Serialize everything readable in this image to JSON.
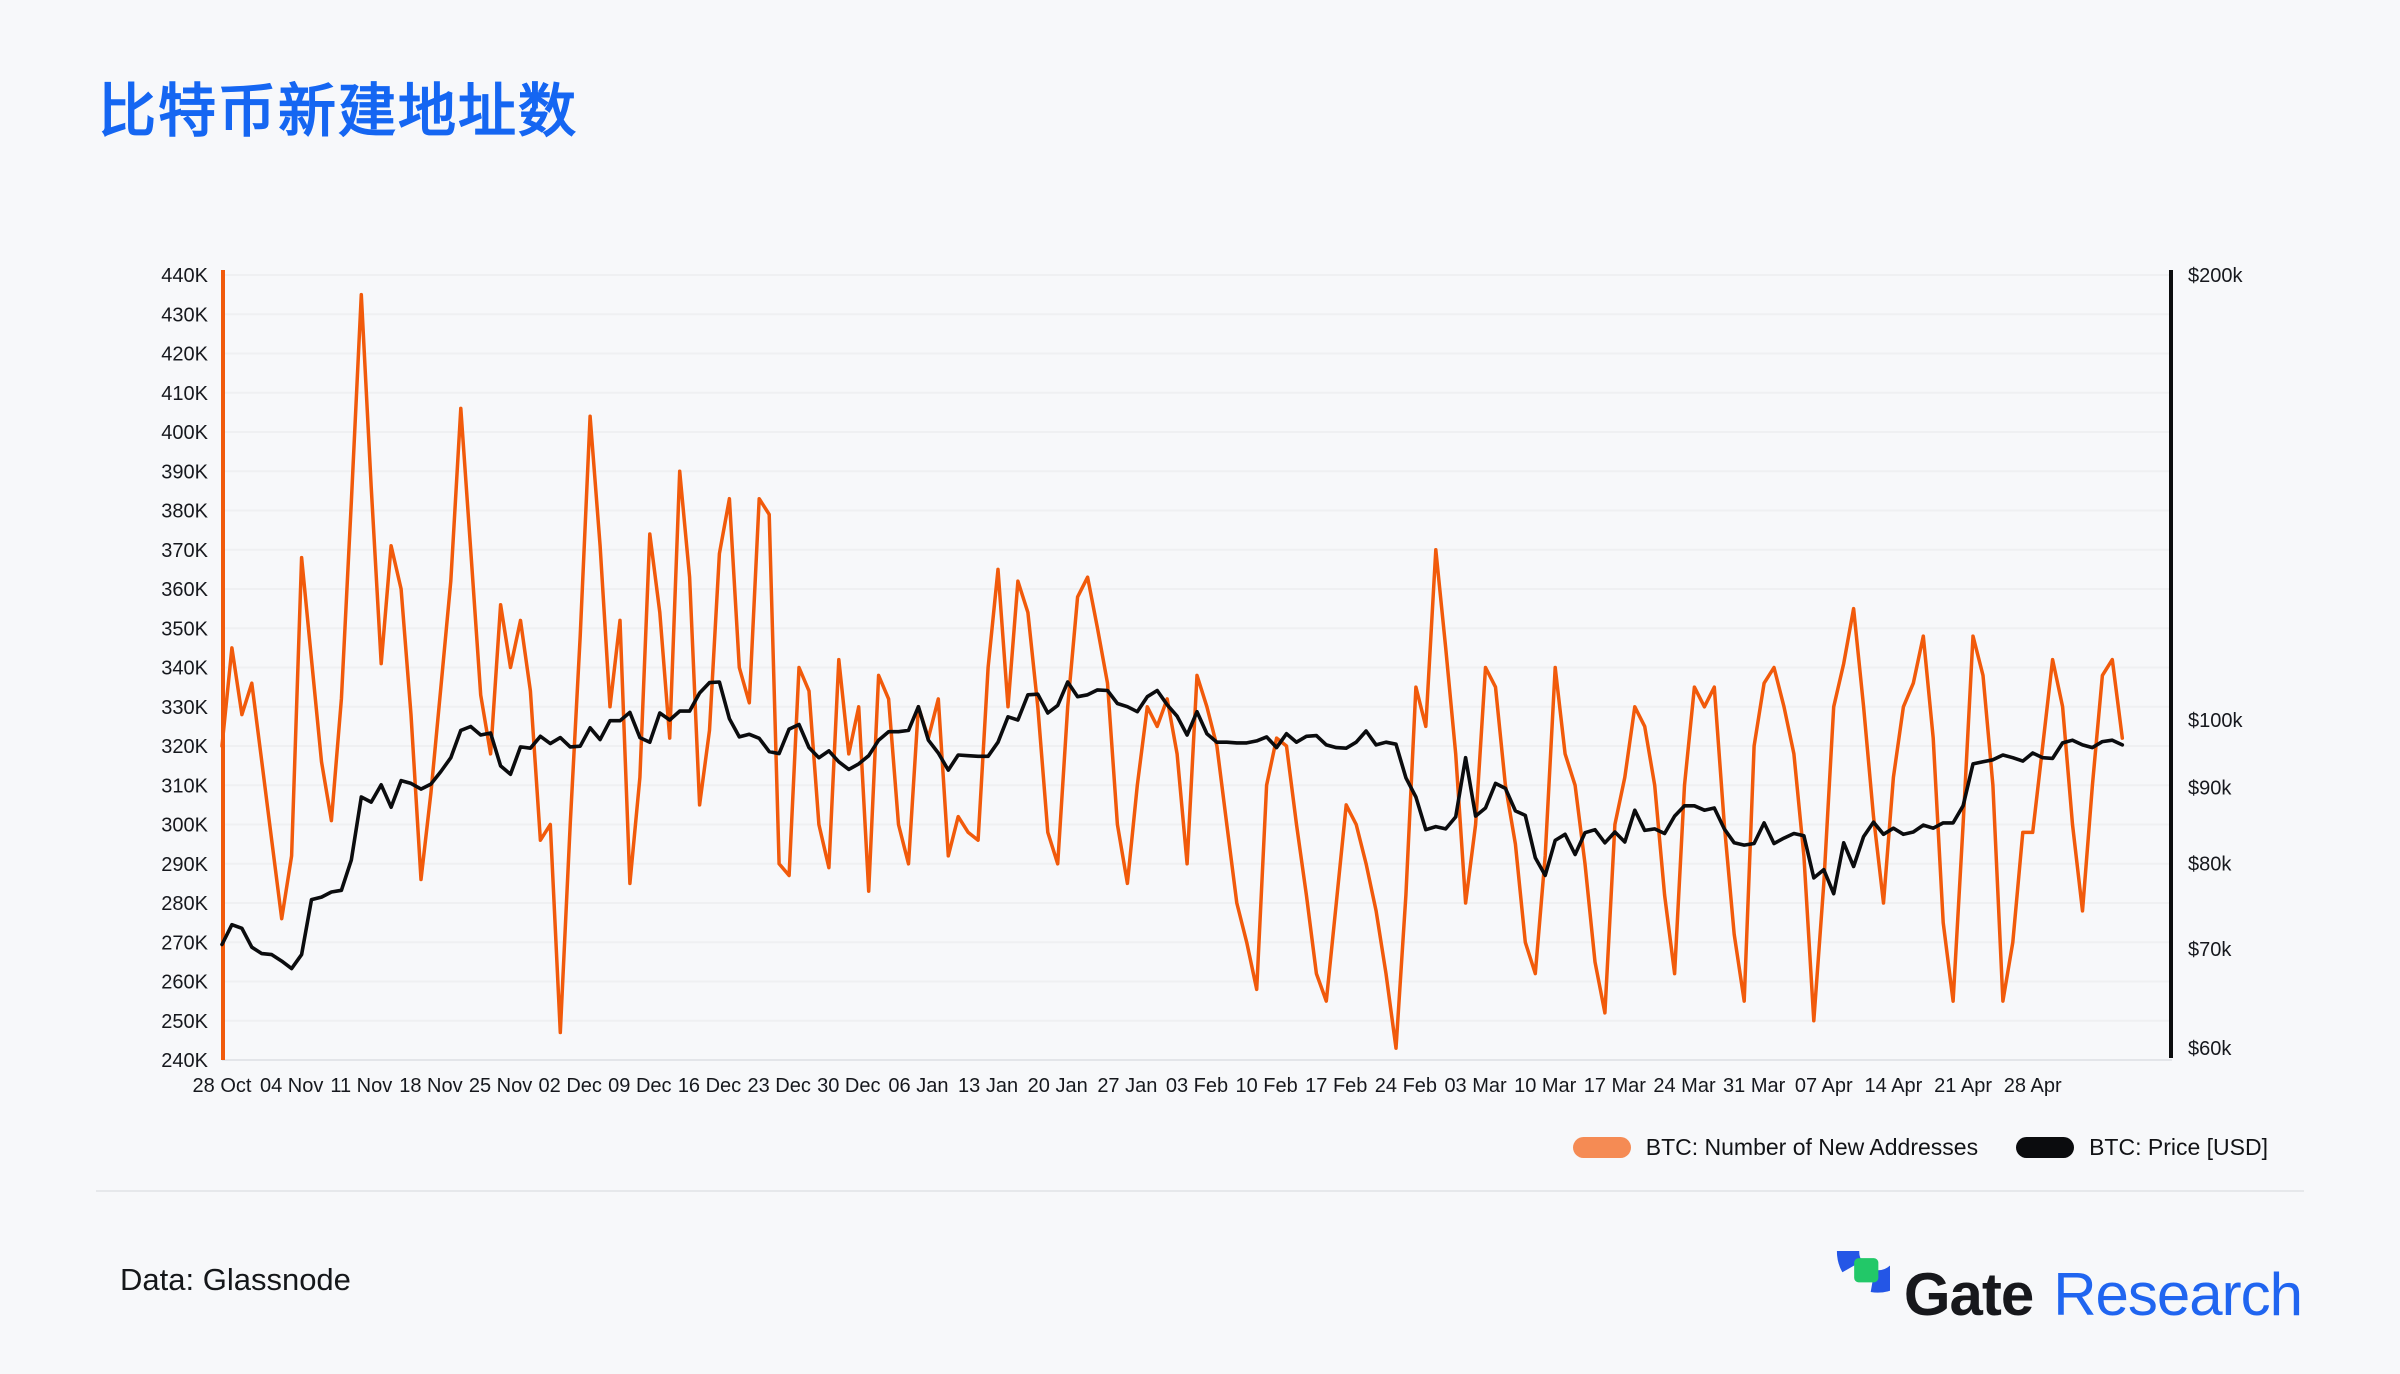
{
  "page": {
    "background": "#F7F8FA"
  },
  "header": {
    "title": "比特币新建地址数",
    "title_color": "#1566F2"
  },
  "chart": {
    "left_axis": {
      "labels": [
        "440K",
        "430K",
        "420K",
        "410K",
        "400K",
        "390K",
        "380K",
        "370K",
        "360K",
        "350K",
        "340K",
        "330K",
        "320K",
        "310K",
        "300K",
        "290K",
        "280K",
        "270K",
        "260K",
        "250K",
        "240K"
      ],
      "values": [
        440,
        430,
        420,
        410,
        400,
        390,
        380,
        370,
        360,
        350,
        340,
        330,
        320,
        310,
        300,
        290,
        280,
        270,
        260,
        250,
        240
      ],
      "spine_color": "#F15A0B",
      "label_color": "#16181D"
    },
    "right_axis": {
      "labels": [
        "$200k",
        "$100k",
        "$90k",
        "$80k",
        "$70k",
        "$60k"
      ],
      "values": [
        200,
        100,
        90,
        80,
        70,
        60
      ],
      "scale": "log",
      "spine_color": "#0B0C0E",
      "label_color": "#16181D"
    },
    "x_axis": {
      "labels": [
        "28 Oct",
        "04 Nov",
        "11 Nov",
        "18 Nov",
        "25 Nov",
        "02 Dec",
        "09 Dec",
        "16 Dec",
        "23 Dec",
        "30 Dec",
        "06 Jan",
        "13 Jan",
        "20 Jan",
        "27 Jan",
        "03 Feb",
        "10 Feb",
        "17 Feb",
        "24 Feb",
        "03 Mar",
        "10 Mar",
        "17 Mar",
        "24 Mar",
        "31 Mar",
        "07 Apr",
        "14 Apr",
        "21 Apr",
        "28 Apr"
      ],
      "label_color": "#16181D"
    },
    "legend": [
      {
        "label": "BTC: Number of New Addresses",
        "color": "#F58B54"
      },
      {
        "label": "BTC: Price [USD]",
        "color": "#0B0C0E"
      }
    ]
  },
  "chart_data": {
    "type": "line",
    "title": "比特币新建地址数",
    "start_date": "28 Oct",
    "frequency": "daily",
    "x_tick_labels": [
      "28 Oct",
      "04 Nov",
      "11 Nov",
      "18 Nov",
      "25 Nov",
      "02 Dec",
      "09 Dec",
      "16 Dec",
      "23 Dec",
      "30 Dec",
      "06 Jan",
      "13 Jan",
      "20 Jan",
      "27 Jan",
      "03 Feb",
      "10 Feb",
      "17 Feb",
      "24 Feb",
      "03 Mar",
      "10 Mar",
      "17 Mar",
      "24 Mar",
      "31 Mar",
      "07 Apr",
      "14 Apr",
      "21 Apr",
      "28 Apr"
    ],
    "left_ylim": [
      240000,
      440000
    ],
    "right_ylim": [
      58900,
      200000
    ],
    "right_axis_scale": "log",
    "grid": "faint-horizontal",
    "legend_position": "bottom-right",
    "series": [
      {
        "name": "BTC: Number of New Addresses",
        "axis": "left",
        "color": "#F15A0B",
        "unit": "addresses (thousands)",
        "values": [
          320,
          345,
          328,
          336,
          316,
          296,
          276,
          292,
          368,
          342,
          316,
          301,
          332,
          382,
          435,
          386,
          341,
          371,
          360,
          328,
          286,
          308,
          335,
          362,
          406,
          370,
          333,
          318,
          356,
          340,
          352,
          334,
          296,
          300,
          247,
          300,
          348,
          404,
          371,
          330,
          352,
          285,
          312,
          374,
          354,
          322,
          390,
          363,
          305,
          324,
          369,
          383,
          340,
          331,
          383,
          379,
          290,
          287,
          340,
          334,
          300,
          289,
          342,
          318,
          330,
          283,
          338,
          332,
          300,
          290,
          330,
          322,
          332,
          292,
          302,
          298,
          296,
          340,
          365,
          330,
          362,
          354,
          330,
          298,
          290,
          330,
          358,
          363,
          350,
          336,
          300,
          285,
          310,
          330,
          325,
          332,
          318,
          290,
          338,
          330,
          320,
          300,
          280,
          270,
          258,
          310,
          322,
          320,
          300,
          282,
          262,
          255,
          280,
          305,
          300,
          290,
          278,
          262,
          243,
          282,
          335,
          325,
          370,
          345,
          318,
          280,
          300,
          340,
          335,
          310,
          295,
          270,
          262,
          292,
          340,
          318,
          310,
          290,
          265,
          252,
          300,
          312,
          330,
          325,
          310,
          282,
          262,
          310,
          335,
          330,
          335,
          300,
          272,
          255,
          320,
          336,
          340,
          330,
          318,
          292,
          250,
          285,
          330,
          341,
          355,
          330,
          302,
          280,
          312,
          330,
          336,
          348,
          322,
          275,
          255,
          300,
          348,
          338,
          310,
          255,
          270,
          298,
          298,
          320,
          342,
          330,
          300,
          278,
          310,
          338,
          342,
          322
        ]
      },
      {
        "name": "BTC: Price [USD]",
        "axis": "right",
        "color": "#0B0C0E",
        "unit": "USD (thousands)",
        "values": [
          70.5,
          72.7,
          72.3,
          70.2,
          69.5,
          69.4,
          68.7,
          67.9,
          69.4,
          75.6,
          75.9,
          76.5,
          76.7,
          80.4,
          88.7,
          88.0,
          90.4,
          87.3,
          91.0,
          90.6,
          89.8,
          90.5,
          92.3,
          94.3,
          98.4,
          99.0,
          97.7,
          98.0,
          93.1,
          91.9,
          95.9,
          95.7,
          97.5,
          96.4,
          97.3,
          95.9,
          96.0,
          98.8,
          97.0,
          99.9,
          99.9,
          101.2,
          97.3,
          96.6,
          101.1,
          100.0,
          101.4,
          101.4,
          104.3,
          106.0,
          106.1,
          100.2,
          97.4,
          97.8,
          97.2,
          95.2,
          94.9,
          98.6,
          99.3,
          95.8,
          94.3,
          95.3,
          93.7,
          92.6,
          93.4,
          94.6,
          96.9,
          98.2,
          98.2,
          98.4,
          102.1,
          96.9,
          95.0,
          92.5,
          94.7,
          94.6,
          94.5,
          94.5,
          96.6,
          100.5,
          100.0,
          104.0,
          104.1,
          101.1,
          102.3,
          106.1,
          103.7,
          104.0,
          104.8,
          104.7,
          102.6,
          102.1,
          101.3,
          103.7,
          104.7,
          102.4,
          100.6,
          97.7,
          101.3,
          97.9,
          96.6,
          96.6,
          96.5,
          96.5,
          96.8,
          97.4,
          95.8,
          97.9,
          96.6,
          97.5,
          97.6,
          96.2,
          95.8,
          95.7,
          96.6,
          98.3,
          96.2,
          96.6,
          96.3,
          91.4,
          88.7,
          84.3,
          84.7,
          84.4,
          86.0,
          94.3,
          86.1,
          87.2,
          90.6,
          89.9,
          86.8,
          86.2,
          80.7,
          78.5,
          82.9,
          83.7,
          81.1,
          83.9,
          84.3,
          82.6,
          84.0,
          82.7,
          86.9,
          84.2,
          84.4,
          83.8,
          86.1,
          87.5,
          87.5,
          86.9,
          87.2,
          84.4,
          82.6,
          82.3,
          82.5,
          85.2,
          82.5,
          83.2,
          83.8,
          83.5,
          78.2,
          79.2,
          76.3,
          82.6,
          79.6,
          83.4,
          85.3,
          83.7,
          84.5,
          83.7,
          84.0,
          84.9,
          84.5,
          85.2,
          85.2,
          87.5,
          93.4,
          93.7,
          94.0,
          94.7,
          94.3,
          93.8,
          95.0,
          94.3,
          94.2,
          96.5,
          96.9,
          96.2,
          95.8,
          96.7,
          96.9,
          96.2
        ]
      }
    ]
  },
  "footer": {
    "source": "Data: Glassnode",
    "brand": {
      "gate": "Gate",
      "research": "Research",
      "logo_blue": "#2456E6",
      "logo_green": "#22C868"
    }
  }
}
